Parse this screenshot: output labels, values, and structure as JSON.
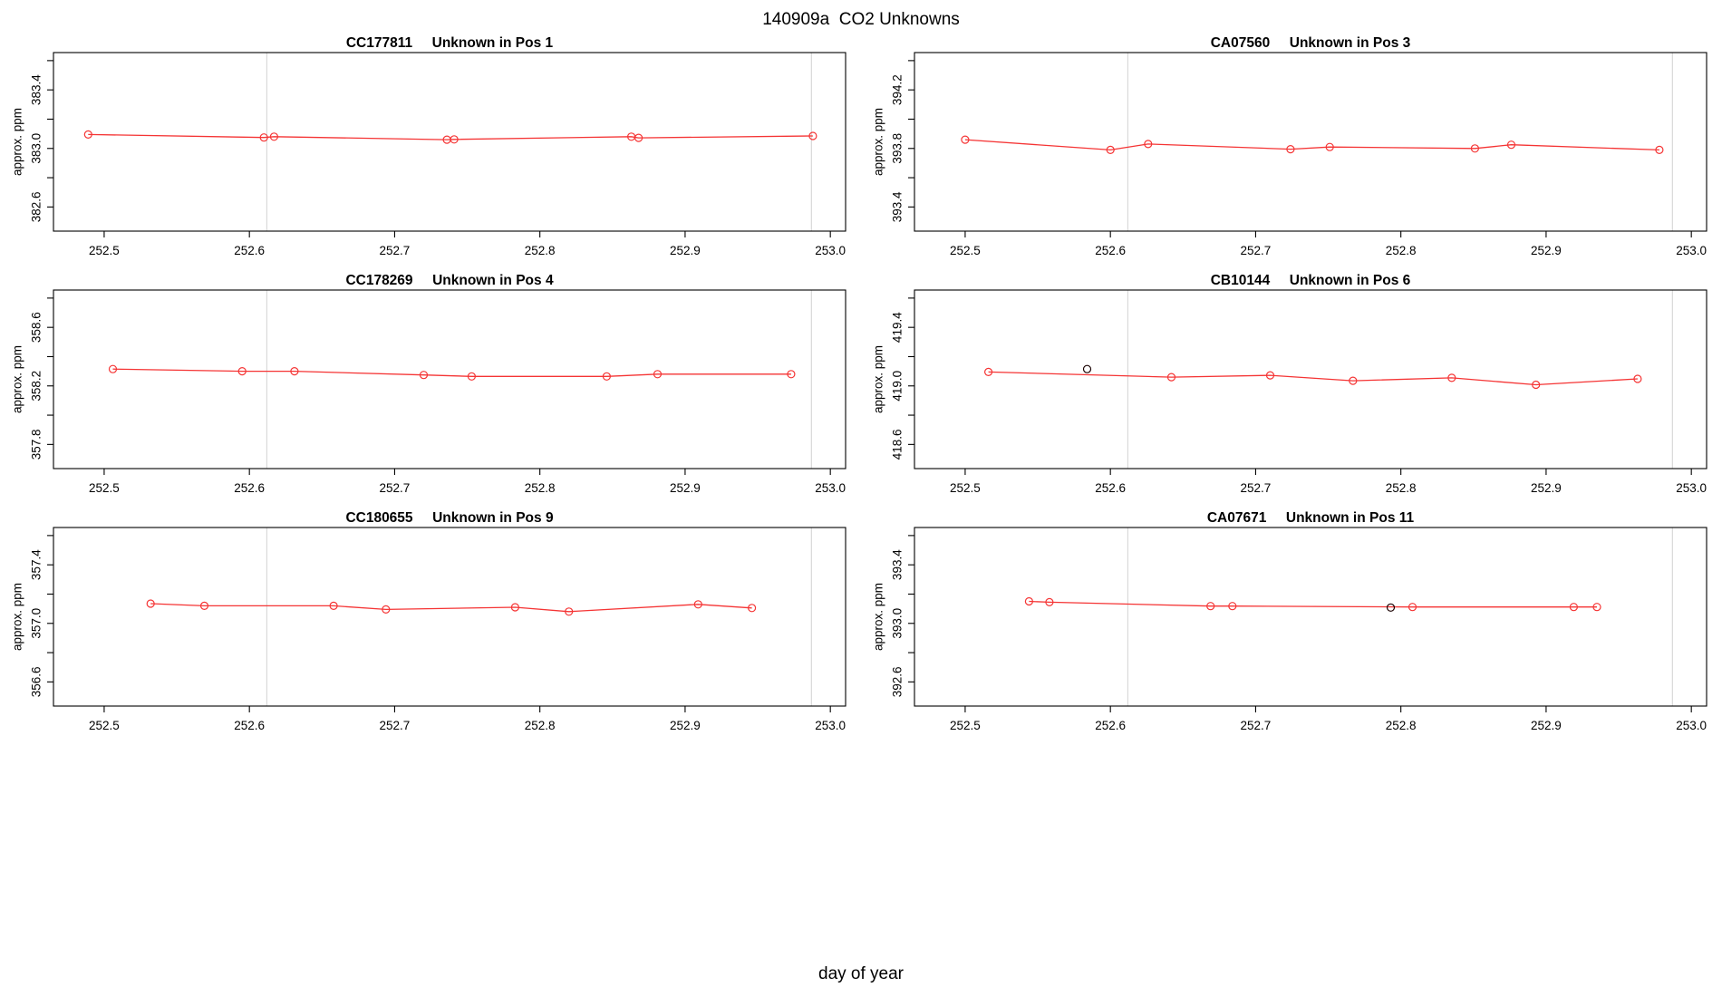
{
  "page": {
    "main_title": "140909a  CO2 Unknowns",
    "x_axis_title": "day of year",
    "colors": {
      "series": "#f53434",
      "flagged_point": "#1a0000",
      "gridline": "#d9d9d9",
      "axis": "#000000",
      "background": "#ffffff"
    }
  },
  "chart_data": [
    {
      "type": "line",
      "sample_id": "CC177811",
      "subtitle": "Unknown in Pos 1",
      "ylabel": "approx. ppm",
      "xlim": [
        252.4651,
        253.0105
      ],
      "ylim": [
        382.435,
        383.655
      ],
      "xticks": [
        {
          "v": 252.5,
          "label": "252.5"
        },
        {
          "v": 252.6,
          "label": "252.6"
        },
        {
          "v": 252.7,
          "label": "252.7"
        },
        {
          "v": 252.8,
          "label": "252.8"
        },
        {
          "v": 252.9,
          "label": "252.9"
        },
        {
          "v": 253.0,
          "label": "253.0"
        }
      ],
      "yticks": [
        {
          "v": 382.6,
          "label": "382.6"
        },
        {
          "v": 382.8,
          "label": ""
        },
        {
          "v": 383.0,
          "label": "383.0"
        },
        {
          "v": 383.2,
          "label": ""
        },
        {
          "v": 383.4,
          "label": "383.4"
        },
        {
          "v": 383.6,
          "label": ""
        }
      ],
      "gridlines_x": [
        252.612,
        252.987
      ],
      "points": [
        {
          "x": 252.489,
          "y": 383.095,
          "flagged": false
        },
        {
          "x": 252.61,
          "y": 383.075,
          "flagged": false
        },
        {
          "x": 252.617,
          "y": 383.08,
          "flagged": false
        },
        {
          "x": 252.736,
          "y": 383.06,
          "flagged": false
        },
        {
          "x": 252.741,
          "y": 383.062,
          "flagged": false
        },
        {
          "x": 252.863,
          "y": 383.08,
          "flagged": false
        },
        {
          "x": 252.868,
          "y": 383.072,
          "flagged": false
        },
        {
          "x": 252.988,
          "y": 383.085,
          "flagged": false
        }
      ]
    },
    {
      "type": "line",
      "sample_id": "CA07560",
      "subtitle": "Unknown in Pos 3",
      "ylabel": "approx. ppm",
      "xlim": [
        252.4651,
        253.0105
      ],
      "ylim": [
        393.235,
        394.455
      ],
      "xticks": [
        {
          "v": 252.5,
          "label": "252.5"
        },
        {
          "v": 252.6,
          "label": "252.6"
        },
        {
          "v": 252.7,
          "label": "252.7"
        },
        {
          "v": 252.8,
          "label": "252.8"
        },
        {
          "v": 252.9,
          "label": "252.9"
        },
        {
          "v": 253.0,
          "label": "253.0"
        }
      ],
      "yticks": [
        {
          "v": 393.4,
          "label": "393.4"
        },
        {
          "v": 393.6,
          "label": ""
        },
        {
          "v": 393.8,
          "label": "393.8"
        },
        {
          "v": 394.0,
          "label": ""
        },
        {
          "v": 394.2,
          "label": "394.2"
        },
        {
          "v": 394.4,
          "label": ""
        }
      ],
      "gridlines_x": [
        252.612,
        252.987
      ],
      "points": [
        {
          "x": 252.5,
          "y": 393.86,
          "flagged": false
        },
        {
          "x": 252.6,
          "y": 393.79,
          "flagged": false
        },
        {
          "x": 252.626,
          "y": 393.83,
          "flagged": false
        },
        {
          "x": 252.724,
          "y": 393.795,
          "flagged": false
        },
        {
          "x": 252.751,
          "y": 393.81,
          "flagged": false
        },
        {
          "x": 252.851,
          "y": 393.8,
          "flagged": false
        },
        {
          "x": 252.876,
          "y": 393.825,
          "flagged": false
        },
        {
          "x": 252.978,
          "y": 393.79,
          "flagged": false
        }
      ]
    },
    {
      "type": "line",
      "sample_id": "CC178269",
      "subtitle": "Unknown in Pos 4",
      "ylabel": "approx. ppm",
      "xlim": [
        252.4651,
        253.0105
      ],
      "ylim": [
        357.635,
        358.855
      ],
      "xticks": [
        {
          "v": 252.5,
          "label": "252.5"
        },
        {
          "v": 252.6,
          "label": "252.6"
        },
        {
          "v": 252.7,
          "label": "252.7"
        },
        {
          "v": 252.8,
          "label": "252.8"
        },
        {
          "v": 252.9,
          "label": "252.9"
        },
        {
          "v": 253.0,
          "label": "253.0"
        }
      ],
      "yticks": [
        {
          "v": 357.8,
          "label": "357.8"
        },
        {
          "v": 358.0,
          "label": ""
        },
        {
          "v": 358.2,
          "label": "358.2"
        },
        {
          "v": 358.4,
          "label": ""
        },
        {
          "v": 358.6,
          "label": "358.6"
        },
        {
          "v": 358.8,
          "label": ""
        }
      ],
      "gridlines_x": [
        252.612,
        252.987
      ],
      "points": [
        {
          "x": 252.506,
          "y": 358.315,
          "flagged": false
        },
        {
          "x": 252.595,
          "y": 358.3,
          "flagged": false
        },
        {
          "x": 252.631,
          "y": 358.3,
          "flagged": false
        },
        {
          "x": 252.72,
          "y": 358.275,
          "flagged": false
        },
        {
          "x": 252.753,
          "y": 358.265,
          "flagged": false
        },
        {
          "x": 252.846,
          "y": 358.265,
          "flagged": false
        },
        {
          "x": 252.881,
          "y": 358.28,
          "flagged": false
        },
        {
          "x": 252.973,
          "y": 358.28,
          "flagged": false
        }
      ]
    },
    {
      "type": "line",
      "sample_id": "CB10144",
      "subtitle": "Unknown in Pos 6",
      "ylabel": "approx. ppm",
      "xlim": [
        252.4651,
        253.0105
      ],
      "ylim": [
        418.435,
        419.655
      ],
      "xticks": [
        {
          "v": 252.5,
          "label": "252.5"
        },
        {
          "v": 252.6,
          "label": "252.6"
        },
        {
          "v": 252.7,
          "label": "252.7"
        },
        {
          "v": 252.8,
          "label": "252.8"
        },
        {
          "v": 252.9,
          "label": "252.9"
        },
        {
          "v": 253.0,
          "label": "253.0"
        }
      ],
      "yticks": [
        {
          "v": 418.6,
          "label": "418.6"
        },
        {
          "v": 418.8,
          "label": ""
        },
        {
          "v": 419.0,
          "label": "419.0"
        },
        {
          "v": 419.2,
          "label": ""
        },
        {
          "v": 419.4,
          "label": "419.4"
        },
        {
          "v": 419.6,
          "label": ""
        }
      ],
      "gridlines_x": [
        252.612,
        252.987
      ],
      "points": [
        {
          "x": 252.516,
          "y": 419.095,
          "flagged": false
        },
        {
          "x": 252.584,
          "y": 419.115,
          "flagged": true
        },
        {
          "x": 252.642,
          "y": 419.06,
          "flagged": false
        },
        {
          "x": 252.71,
          "y": 419.072,
          "flagged": false
        },
        {
          "x": 252.767,
          "y": 419.035,
          "flagged": false
        },
        {
          "x": 252.835,
          "y": 419.055,
          "flagged": false
        },
        {
          "x": 252.893,
          "y": 419.008,
          "flagged": false
        },
        {
          "x": 252.963,
          "y": 419.048,
          "flagged": false
        }
      ]
    },
    {
      "type": "line",
      "sample_id": "CC180655",
      "subtitle": "Unknown in Pos 9",
      "ylabel": "approx. ppm",
      "xlim": [
        252.4651,
        253.0105
      ],
      "ylim": [
        356.435,
        357.655
      ],
      "xticks": [
        {
          "v": 252.5,
          "label": "252.5"
        },
        {
          "v": 252.6,
          "label": "252.6"
        },
        {
          "v": 252.7,
          "label": "252.7"
        },
        {
          "v": 252.8,
          "label": "252.8"
        },
        {
          "v": 252.9,
          "label": "252.9"
        },
        {
          "v": 253.0,
          "label": "253.0"
        }
      ],
      "yticks": [
        {
          "v": 356.6,
          "label": "356.6"
        },
        {
          "v": 356.8,
          "label": ""
        },
        {
          "v": 357.0,
          "label": "357.0"
        },
        {
          "v": 357.2,
          "label": ""
        },
        {
          "v": 357.4,
          "label": "357.4"
        },
        {
          "v": 357.6,
          "label": ""
        }
      ],
      "gridlines_x": [
        252.612,
        252.987
      ],
      "points": [
        {
          "x": 252.532,
          "y": 357.135,
          "flagged": false
        },
        {
          "x": 252.569,
          "y": 357.12,
          "flagged": false
        },
        {
          "x": 252.658,
          "y": 357.12,
          "flagged": false
        },
        {
          "x": 252.694,
          "y": 357.095,
          "flagged": false
        },
        {
          "x": 252.783,
          "y": 357.11,
          "flagged": false
        },
        {
          "x": 252.82,
          "y": 357.08,
          "flagged": false
        },
        {
          "x": 252.909,
          "y": 357.13,
          "flagged": false
        },
        {
          "x": 252.946,
          "y": 357.105,
          "flagged": false
        }
      ]
    },
    {
      "type": "line",
      "sample_id": "CA07671",
      "subtitle": "Unknown in Pos 11",
      "ylabel": "approx. ppm",
      "xlim": [
        252.4651,
        253.0105
      ],
      "ylim": [
        392.435,
        393.655
      ],
      "xticks": [
        {
          "v": 252.5,
          "label": "252.5"
        },
        {
          "v": 252.6,
          "label": "252.6"
        },
        {
          "v": 252.7,
          "label": "252.7"
        },
        {
          "v": 252.8,
          "label": "252.8"
        },
        {
          "v": 252.9,
          "label": "252.9"
        },
        {
          "v": 253.0,
          "label": "253.0"
        }
      ],
      "yticks": [
        {
          "v": 392.6,
          "label": "392.6"
        },
        {
          "v": 392.8,
          "label": ""
        },
        {
          "v": 393.0,
          "label": "393.0"
        },
        {
          "v": 393.2,
          "label": ""
        },
        {
          "v": 393.4,
          "label": "393.4"
        },
        {
          "v": 393.6,
          "label": ""
        }
      ],
      "gridlines_x": [
        252.612,
        252.987
      ],
      "points": [
        {
          "x": 252.544,
          "y": 393.15,
          "flagged": false
        },
        {
          "x": 252.558,
          "y": 393.145,
          "flagged": false
        },
        {
          "x": 252.669,
          "y": 393.118,
          "flagged": false
        },
        {
          "x": 252.684,
          "y": 393.118,
          "flagged": false
        },
        {
          "x": 252.793,
          "y": 393.108,
          "flagged": true
        },
        {
          "x": 252.808,
          "y": 393.112,
          "flagged": false
        },
        {
          "x": 252.919,
          "y": 393.112,
          "flagged": false
        },
        {
          "x": 252.935,
          "y": 393.112,
          "flagged": false
        }
      ]
    }
  ]
}
